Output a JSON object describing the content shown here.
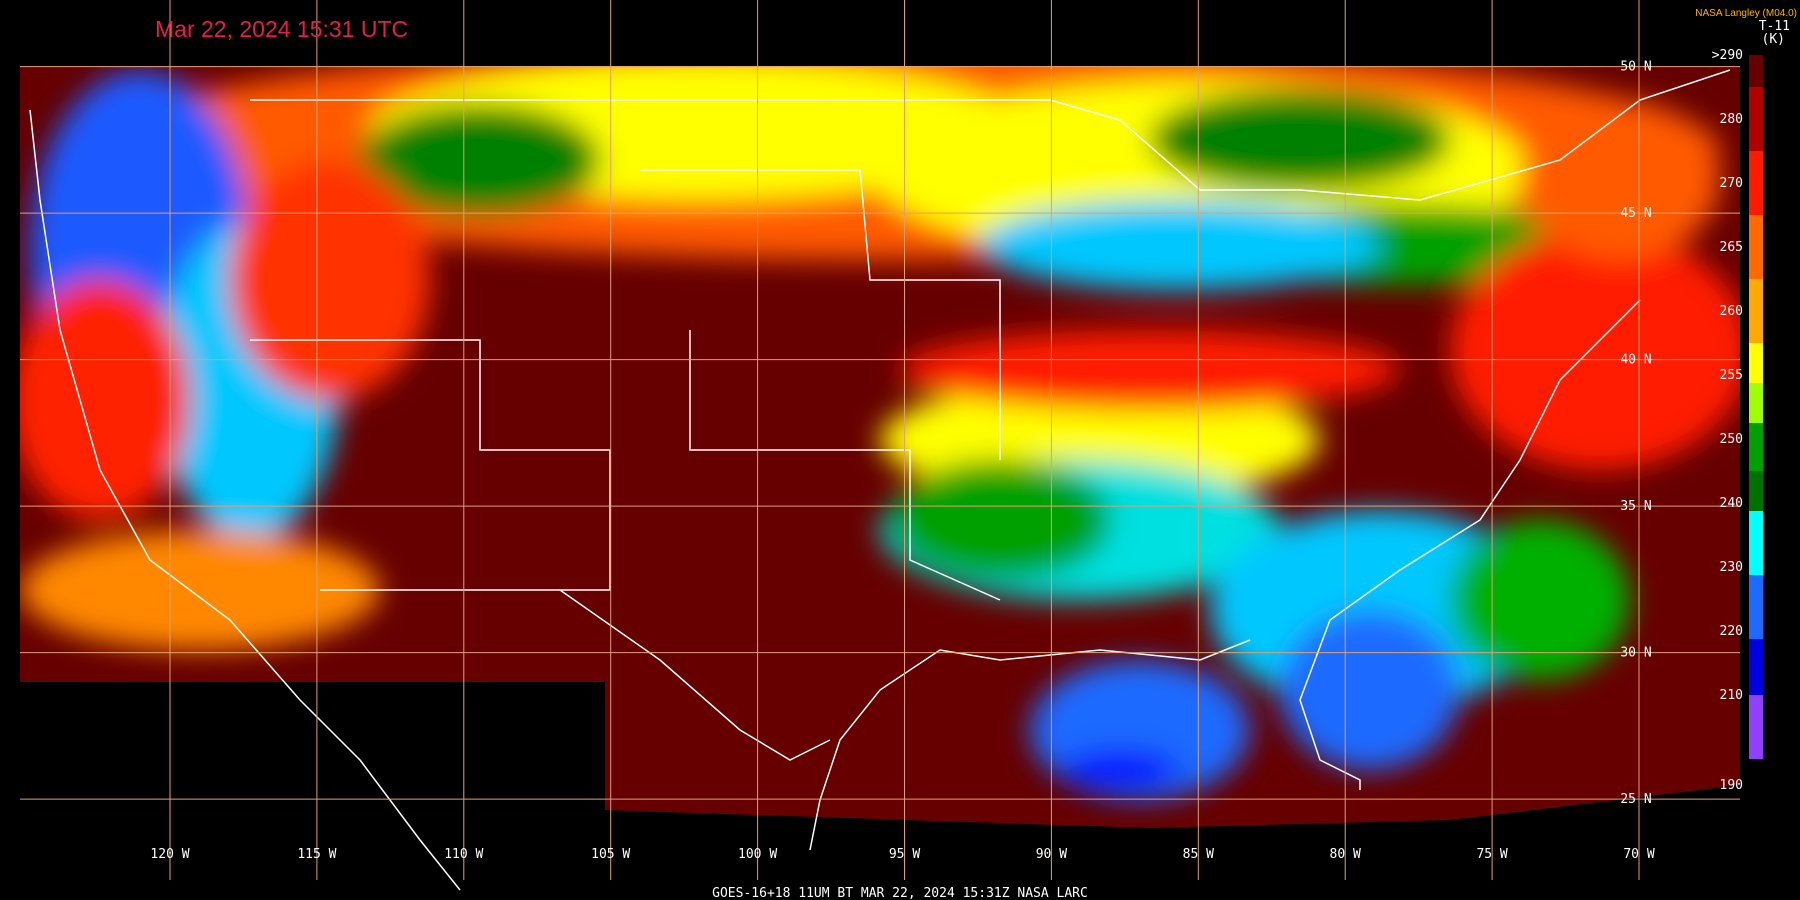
{
  "header": {
    "timestamp": "Mar 22, 2024 15:31 UTC",
    "credit": "NASA Langley (M04.0)",
    "band": "T-11",
    "unit": "(K)"
  },
  "colorbar": {
    "labels": [
      ">290",
      "280",
      "270",
      "265",
      "260",
      "255",
      "250",
      "240",
      "230",
      "220",
      "210",
      "190"
    ]
  },
  "grid": {
    "latitudes": [
      "50 N",
      "45 N",
      "40 N",
      "35 N",
      "30 N",
      "25 N"
    ],
    "longitudes": [
      "120 W",
      "115 W",
      "110 W",
      "105 W",
      "100 W",
      "95 W",
      "90 W",
      "85 W",
      "80 W",
      "75 W",
      "70 W"
    ]
  },
  "footer": "GOES-16+18  11UM BT  MAR 22, 2024 15:31Z  NASA LARC"
}
